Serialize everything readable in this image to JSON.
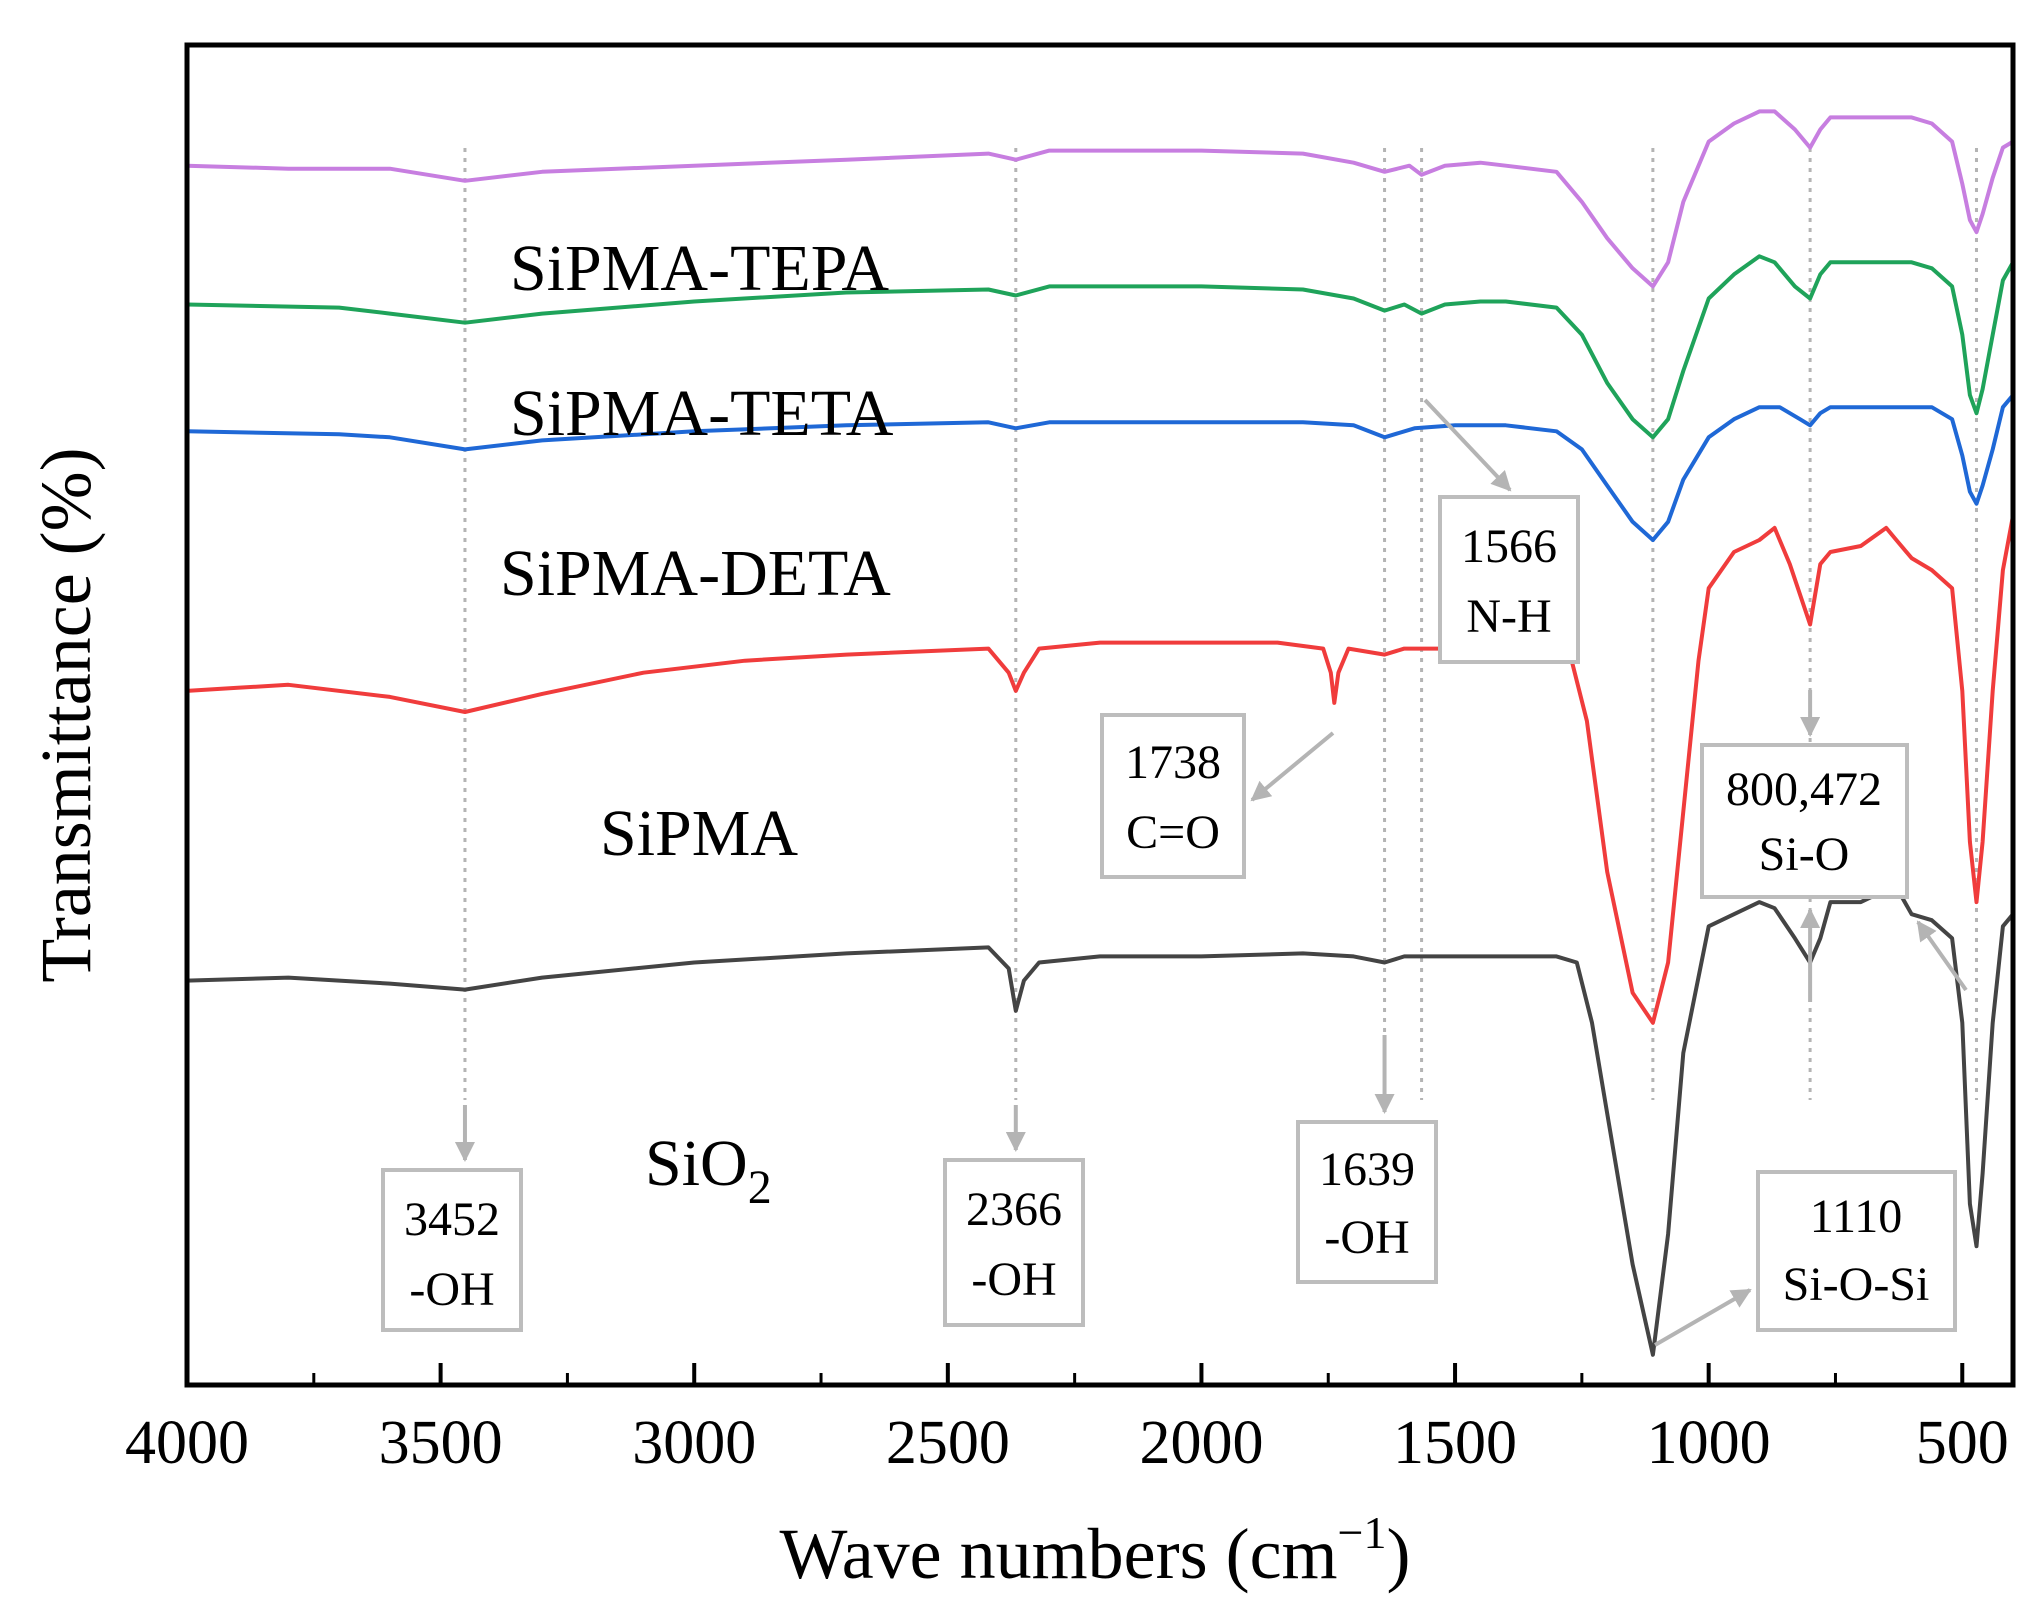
{
  "chart_data": {
    "type": "line",
    "title": "",
    "xlabel": "Wave numbers (cm",
    "xlabel_sup": "−1",
    "xlabel_close": ")",
    "ylabel": "Transmittance (%)",
    "xlim": [
      4000,
      400
    ],
    "xticks": [
      4000,
      3500,
      3000,
      2500,
      2000,
      1500,
      1000,
      500
    ],
    "yaxis_ticks_visible": false,
    "grid": false,
    "colors": {
      "SiO2": "#444444",
      "SiPMA": "#f03c3c",
      "SiPMA-DETA": "#1f68d6",
      "SiPMA-TETA": "#1fa35a",
      "SiPMA-TEPA": "#c77ee0",
      "guide": "#b4b4b4",
      "box": "#bdbdbd"
    },
    "series": [
      {
        "name": "SiO2",
        "label_main": "SiO",
        "label_sub": "2",
        "offset": 0,
        "points": [
          [
            4000,
            17
          ],
          [
            3800,
            17.5
          ],
          [
            3700,
            17
          ],
          [
            3600,
            16.5
          ],
          [
            3452,
            15.5
          ],
          [
            3300,
            17.5
          ],
          [
            3000,
            20
          ],
          [
            2700,
            21.5
          ],
          [
            2420,
            22.5
          ],
          [
            2380,
            19
          ],
          [
            2366,
            12
          ],
          [
            2350,
            17
          ],
          [
            2320,
            20
          ],
          [
            2200,
            21
          ],
          [
            2000,
            21
          ],
          [
            1800,
            21.5
          ],
          [
            1700,
            21
          ],
          [
            1639,
            20
          ],
          [
            1600,
            21
          ],
          [
            1500,
            21
          ],
          [
            1400,
            21
          ],
          [
            1300,
            21
          ],
          [
            1260,
            20
          ],
          [
            1230,
            10
          ],
          [
            1200,
            -5
          ],
          [
            1150,
            -30
          ],
          [
            1110,
            -45
          ],
          [
            1080,
            -25
          ],
          [
            1050,
            5
          ],
          [
            1000,
            26
          ],
          [
            950,
            28
          ],
          [
            900,
            30
          ],
          [
            870,
            29
          ],
          [
            830,
            24
          ],
          [
            800,
            20
          ],
          [
            780,
            24
          ],
          [
            760,
            30
          ],
          [
            700,
            30
          ],
          [
            650,
            32
          ],
          [
            620,
            31
          ],
          [
            600,
            28
          ],
          [
            560,
            27
          ],
          [
            520,
            24
          ],
          [
            500,
            10
          ],
          [
            485,
            -20
          ],
          [
            472,
            -27
          ],
          [
            460,
            -15
          ],
          [
            440,
            10
          ],
          [
            420,
            26
          ],
          [
            400,
            28
          ]
        ]
      },
      {
        "name": "SiPMA",
        "label_main": "SiPMA",
        "label_sub": "",
        "offset": 0,
        "points": [
          [
            4000,
            65
          ],
          [
            3900,
            65.5
          ],
          [
            3800,
            66
          ],
          [
            3600,
            64
          ],
          [
            3452,
            61.5
          ],
          [
            3300,
            64.5
          ],
          [
            3100,
            68
          ],
          [
            2900,
            70
          ],
          [
            2700,
            71
          ],
          [
            2420,
            72
          ],
          [
            2380,
            68
          ],
          [
            2366,
            65
          ],
          [
            2350,
            68
          ],
          [
            2320,
            72
          ],
          [
            2200,
            73
          ],
          [
            2000,
            73
          ],
          [
            1850,
            73
          ],
          [
            1760,
            72
          ],
          [
            1745,
            68
          ],
          [
            1738,
            63
          ],
          [
            1730,
            68
          ],
          [
            1710,
            72
          ],
          [
            1639,
            71
          ],
          [
            1600,
            72
          ],
          [
            1500,
            72
          ],
          [
            1450,
            72
          ],
          [
            1400,
            73
          ],
          [
            1300,
            73
          ],
          [
            1270,
            70
          ],
          [
            1240,
            60
          ],
          [
            1200,
            35
          ],
          [
            1150,
            15
          ],
          [
            1110,
            10
          ],
          [
            1080,
            20
          ],
          [
            1050,
            45
          ],
          [
            1020,
            70
          ],
          [
            1000,
            82
          ],
          [
            950,
            88
          ],
          [
            900,
            90
          ],
          [
            870,
            92
          ],
          [
            840,
            86
          ],
          [
            800,
            76
          ],
          [
            780,
            86
          ],
          [
            760,
            88
          ],
          [
            700,
            89
          ],
          [
            650,
            92
          ],
          [
            630,
            90
          ],
          [
            600,
            87
          ],
          [
            560,
            85
          ],
          [
            520,
            82
          ],
          [
            500,
            65
          ],
          [
            485,
            40
          ],
          [
            472,
            30
          ],
          [
            460,
            40
          ],
          [
            440,
            65
          ],
          [
            420,
            85
          ],
          [
            400,
            94
          ]
        ]
      },
      {
        "name": "SiPMA-DETA",
        "label_main": "SiPMA-DETA",
        "label_sub": "",
        "offset": 0,
        "points": [
          [
            4000,
            108
          ],
          [
            3700,
            107.5
          ],
          [
            3600,
            107
          ],
          [
            3452,
            105
          ],
          [
            3300,
            106.5
          ],
          [
            3000,
            108
          ],
          [
            2700,
            109
          ],
          [
            2420,
            109.5
          ],
          [
            2366,
            108.5
          ],
          [
            2300,
            109.5
          ],
          [
            2000,
            109.5
          ],
          [
            1800,
            109.5
          ],
          [
            1700,
            109
          ],
          [
            1639,
            107
          ],
          [
            1580,
            108.5
          ],
          [
            1500,
            109
          ],
          [
            1400,
            109
          ],
          [
            1300,
            108
          ],
          [
            1250,
            105
          ],
          [
            1200,
            99
          ],
          [
            1150,
            93
          ],
          [
            1110,
            90
          ],
          [
            1080,
            93
          ],
          [
            1050,
            100
          ],
          [
            1000,
            107
          ],
          [
            950,
            110
          ],
          [
            900,
            112
          ],
          [
            860,
            112
          ],
          [
            820,
            110
          ],
          [
            800,
            109
          ],
          [
            780,
            111
          ],
          [
            760,
            112
          ],
          [
            700,
            112
          ],
          [
            600,
            112
          ],
          [
            560,
            112
          ],
          [
            520,
            110
          ],
          [
            500,
            104
          ],
          [
            485,
            98
          ],
          [
            472,
            96
          ],
          [
            460,
            99
          ],
          [
            440,
            105
          ],
          [
            420,
            112
          ],
          [
            400,
            114
          ]
        ]
      },
      {
        "name": "SiPMA-TETA",
        "label_main": "SiPMA-TETA",
        "label_sub": "",
        "offset": 0,
        "points": [
          [
            4000,
            129
          ],
          [
            3700,
            128.5
          ],
          [
            3600,
            127.5
          ],
          [
            3452,
            126
          ],
          [
            3300,
            127.5
          ],
          [
            3000,
            129.5
          ],
          [
            2700,
            131
          ],
          [
            2420,
            131.5
          ],
          [
            2366,
            130.5
          ],
          [
            2300,
            132
          ],
          [
            2000,
            132
          ],
          [
            1800,
            131.5
          ],
          [
            1700,
            130
          ],
          [
            1639,
            128
          ],
          [
            1600,
            129
          ],
          [
            1566,
            127.5
          ],
          [
            1520,
            129
          ],
          [
            1450,
            129.5
          ],
          [
            1400,
            129.5
          ],
          [
            1300,
            128.5
          ],
          [
            1250,
            124
          ],
          [
            1200,
            116
          ],
          [
            1150,
            110
          ],
          [
            1110,
            107
          ],
          [
            1080,
            110
          ],
          [
            1050,
            118
          ],
          [
            1000,
            130
          ],
          [
            950,
            134
          ],
          [
            900,
            137
          ],
          [
            870,
            136
          ],
          [
            830,
            132
          ],
          [
            800,
            130
          ],
          [
            780,
            134
          ],
          [
            760,
            136
          ],
          [
            700,
            136
          ],
          [
            600,
            136
          ],
          [
            560,
            135
          ],
          [
            520,
            132
          ],
          [
            500,
            124
          ],
          [
            485,
            114
          ],
          [
            472,
            111
          ],
          [
            460,
            115
          ],
          [
            440,
            124
          ],
          [
            420,
            133
          ],
          [
            400,
            136
          ]
        ]
      },
      {
        "name": "SiPMA-TEPA",
        "label_main": "SiPMA-TEPA",
        "label_sub": "",
        "offset": 0,
        "points": [
          [
            4000,
            152
          ],
          [
            3800,
            151.5
          ],
          [
            3600,
            151.5
          ],
          [
            3452,
            149.5
          ],
          [
            3300,
            151
          ],
          [
            3000,
            152
          ],
          [
            2700,
            153
          ],
          [
            2420,
            154
          ],
          [
            2366,
            153
          ],
          [
            2300,
            154.5
          ],
          [
            2000,
            154.5
          ],
          [
            1800,
            154
          ],
          [
            1700,
            152.5
          ],
          [
            1639,
            151
          ],
          [
            1590,
            152
          ],
          [
            1566,
            150.5
          ],
          [
            1520,
            152
          ],
          [
            1450,
            152.5
          ],
          [
            1400,
            152
          ],
          [
            1300,
            151
          ],
          [
            1250,
            146
          ],
          [
            1200,
            140
          ],
          [
            1150,
            135
          ],
          [
            1110,
            132
          ],
          [
            1080,
            136
          ],
          [
            1050,
            146
          ],
          [
            1000,
            156
          ],
          [
            950,
            159
          ],
          [
            900,
            161
          ],
          [
            870,
            161
          ],
          [
            830,
            158
          ],
          [
            800,
            155
          ],
          [
            780,
            158
          ],
          [
            760,
            160
          ],
          [
            700,
            160
          ],
          [
            600,
            160
          ],
          [
            560,
            159
          ],
          [
            520,
            156
          ],
          [
            500,
            149
          ],
          [
            485,
            143
          ],
          [
            472,
            141
          ],
          [
            460,
            144
          ],
          [
            440,
            150
          ],
          [
            420,
            155
          ],
          [
            400,
            156
          ]
        ]
      }
    ],
    "yrange": [
      -50,
      172
    ],
    "guide_lines": [
      3452,
      2366,
      1639,
      1566,
      1110,
      800,
      472
    ],
    "annotations": [
      {
        "name": "ann-3452",
        "lines": [
          "3452",
          "-OH"
        ],
        "anchor_x": 3452
      },
      {
        "name": "ann-2366",
        "lines": [
          "2366",
          "-OH"
        ],
        "anchor_x": 2366
      },
      {
        "name": "ann-1639",
        "lines": [
          "1639",
          "-OH"
        ],
        "anchor_x": 1639
      },
      {
        "name": "ann-1738",
        "lines": [
          "1738",
          "C=O"
        ],
        "anchor_x": 1738
      },
      {
        "name": "ann-1566",
        "lines": [
          "1566",
          "N-H"
        ],
        "anchor_x": 1566
      },
      {
        "name": "ann-800-472",
        "lines": [
          "800,472",
          "Si-O"
        ],
        "anchor_x": 800
      },
      {
        "name": "ann-1110",
        "lines": [
          "1110",
          "Si-O-Si"
        ],
        "anchor_x": 1110
      }
    ]
  }
}
